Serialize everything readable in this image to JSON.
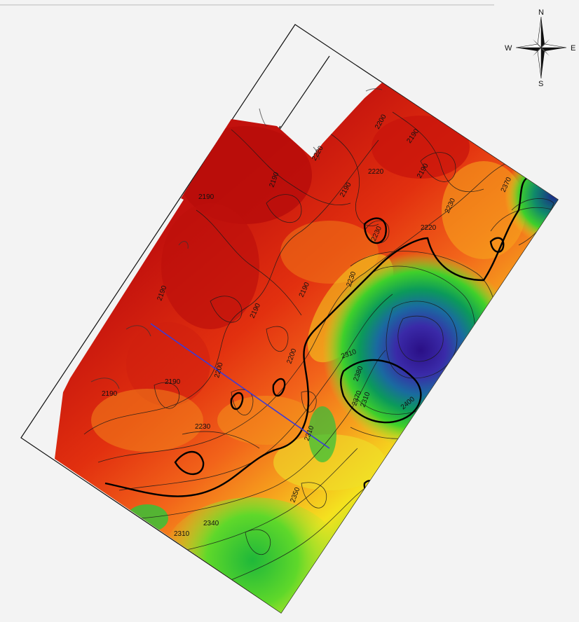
{
  "map": {
    "contour_labels": [
      "2190",
      "2190",
      "2190",
      "2190",
      "2190",
      "2190",
      "2190",
      "2190",
      "2190",
      "2190",
      "2200",
      "2200",
      "2200",
      "2220",
      "2220",
      "2220",
      "2230",
      "2230",
      "2230",
      "2230",
      "2310",
      "2310",
      "2310",
      "2310",
      "2340",
      "2350",
      "2370",
      "2370",
      "2380",
      "2400"
    ],
    "colors": {
      "low": "#c2110d",
      "mid_red": "#e83a12",
      "orange": "#f5861a",
      "yellow": "#f4e21f",
      "green": "#3fd02a",
      "deep_green": "#0a8a4e",
      "blue": "#1a3aa8",
      "purple": "#3a1a8a",
      "profile_line": "#3b3bd8"
    }
  },
  "compass": {
    "north": "N",
    "east": "E",
    "south": "S",
    "west": "W"
  }
}
